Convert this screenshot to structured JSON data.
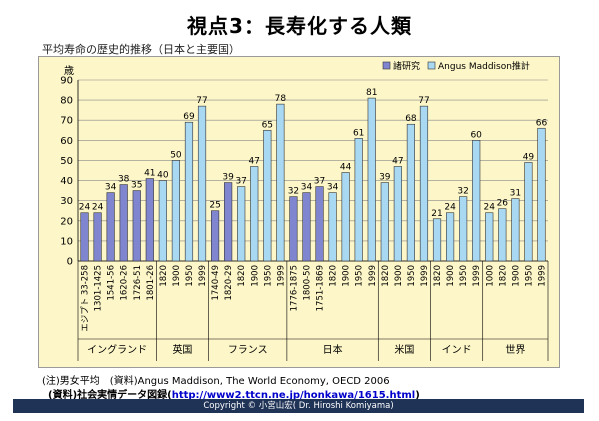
{
  "page": {
    "title": "視点3：長寿化する人類",
    "subtitle": "平均寿命の歴史的推移（日本と主要国）",
    "note_line1": "(注)男女平均　(資料)Angus Maddison, The World Economy, OECD 2006",
    "note_line2_prefix": "(資料)社会実情データ図録(",
    "note_line2_link": "http://www2.ttcn.ne.jp/honkawa/1615.html",
    "note_line2_suffix": ")",
    "footer": "Copyright © 小宮山宏( Dr. Hiroshi Komiyama)"
  },
  "colors": {
    "plot_bg": "#fdf6c8",
    "study": "#7f86cf",
    "maddison": "#a9d8f2",
    "bar_stroke": "#333333",
    "grid": "#888888"
  },
  "chart_data": {
    "type": "bar",
    "title": "",
    "ylabel": "歳",
    "ylim": [
      0,
      90
    ],
    "yticks": [
      0,
      10,
      20,
      30,
      40,
      50,
      60,
      70,
      80,
      90
    ],
    "grid": true,
    "legend_position": "top-right",
    "series": [
      {
        "key": "study",
        "name": "諸研究"
      },
      {
        "key": "maddison",
        "name": "Angus Maddison推計"
      }
    ],
    "groups": [
      {
        "label": "イングランド",
        "bars": [
          {
            "x": "エジプト 33-258",
            "value": 24,
            "series": "study"
          },
          {
            "x": "1301-1425",
            "value": 24,
            "series": "study"
          },
          {
            "x": "1541-56",
            "value": 34,
            "series": "study"
          },
          {
            "x": "1620-26",
            "value": 38,
            "series": "study"
          },
          {
            "x": "1726-51",
            "value": 35,
            "series": "study"
          },
          {
            "x": "1801-26",
            "value": 41,
            "series": "study"
          }
        ]
      },
      {
        "label": "英国",
        "bars": [
          {
            "x": "1820",
            "value": 40,
            "series": "maddison"
          },
          {
            "x": "1900",
            "value": 50,
            "series": "maddison"
          },
          {
            "x": "1950",
            "value": 69,
            "series": "maddison"
          },
          {
            "x": "1999",
            "value": 77,
            "series": "maddison"
          }
        ]
      },
      {
        "label": "フランス",
        "bars": [
          {
            "x": "1740-49",
            "value": 25,
            "series": "study"
          },
          {
            "x": "1820-29",
            "value": 39,
            "series": "study"
          },
          {
            "x": "1820",
            "value": 37,
            "series": "maddison"
          },
          {
            "x": "1900",
            "value": 47,
            "series": "maddison"
          },
          {
            "x": "1950",
            "value": 65,
            "series": "maddison"
          },
          {
            "x": "1999",
            "value": 78,
            "series": "maddison"
          }
        ]
      },
      {
        "label": "日本",
        "bars": [
          {
            "x": "1776-1875",
            "value": 32,
            "series": "study"
          },
          {
            "x": "1800-50",
            "value": 34,
            "series": "study"
          },
          {
            "x": "1751-1869",
            "value": 37,
            "series": "study"
          },
          {
            "x": "1820",
            "value": 34,
            "series": "maddison"
          },
          {
            "x": "1900",
            "value": 44,
            "series": "maddison"
          },
          {
            "x": "1950",
            "value": 61,
            "series": "maddison"
          },
          {
            "x": "1999",
            "value": 81,
            "series": "maddison"
          }
        ]
      },
      {
        "label": "米国",
        "bars": [
          {
            "x": "1820",
            "value": 39,
            "series": "maddison"
          },
          {
            "x": "1900",
            "value": 47,
            "series": "maddison"
          },
          {
            "x": "1950",
            "value": 68,
            "series": "maddison"
          },
          {
            "x": "1999",
            "value": 77,
            "series": "maddison"
          }
        ]
      },
      {
        "label": "インド",
        "bars": [
          {
            "x": "1820",
            "value": 21,
            "series": "maddison"
          },
          {
            "x": "1900",
            "value": 24,
            "series": "maddison"
          },
          {
            "x": "1950",
            "value": 32,
            "series": "maddison"
          },
          {
            "x": "1999",
            "value": 60,
            "series": "maddison"
          }
        ]
      },
      {
        "label": "世界",
        "bars": [
          {
            "x": "1000",
            "value": 24,
            "series": "maddison"
          },
          {
            "x": "1820",
            "value": 26,
            "series": "maddison"
          },
          {
            "x": "1900",
            "value": 31,
            "series": "maddison"
          },
          {
            "x": "1950",
            "value": 49,
            "series": "maddison"
          },
          {
            "x": "1999",
            "value": 66,
            "series": "maddison"
          }
        ]
      }
    ]
  }
}
